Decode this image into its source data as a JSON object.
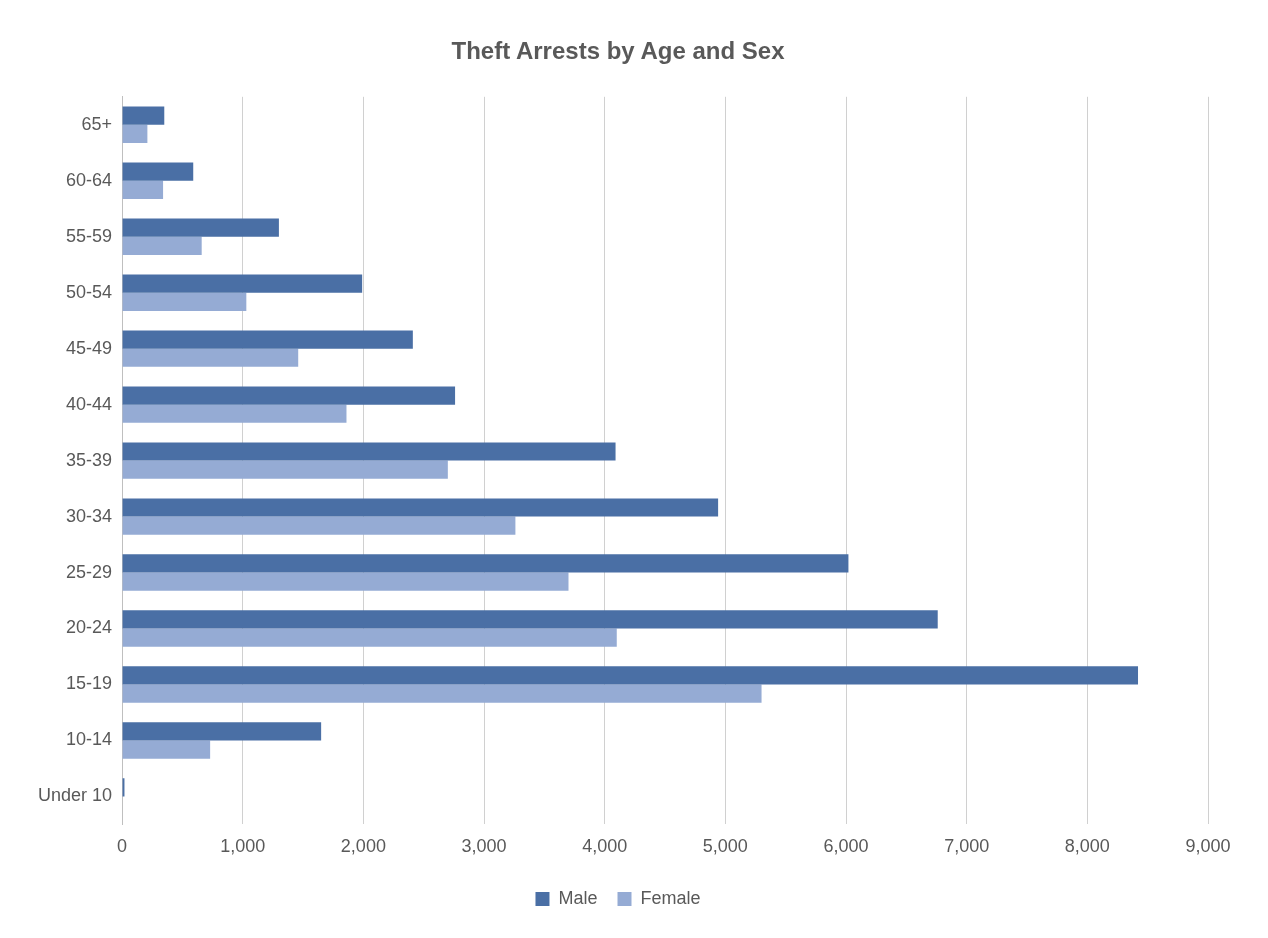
{
  "chart_data": {
    "type": "bar",
    "orientation": "horizontal",
    "title": "Theft Arrests by Age and Sex",
    "categories": [
      "65+",
      "60-64",
      "55-59",
      "50-54",
      "45-49",
      "40-44",
      "35-39",
      "30-34",
      "25-29",
      "20-24",
      "15-19",
      "10-14",
      "Under 10"
    ],
    "series": [
      {
        "name": "Male",
        "color": "#4a6fa5",
        "values": [
          350,
          590,
          1300,
          1990,
          2410,
          2760,
          4090,
          4940,
          6020,
          6760,
          8420,
          1650,
          20
        ]
      },
      {
        "name": "Female",
        "color": "#95abd4",
        "values": [
          210,
          340,
          660,
          1030,
          1460,
          1860,
          2700,
          3260,
          3700,
          4100,
          5300,
          730,
          null
        ]
      }
    ],
    "xlim": [
      0,
      9000
    ],
    "xticks": [
      {
        "value": 0,
        "label": "0"
      },
      {
        "value": 1000,
        "label": "1,000"
      },
      {
        "value": 2000,
        "label": "2,000"
      },
      {
        "value": 3000,
        "label": "3,000"
      },
      {
        "value": 4000,
        "label": "4,000"
      },
      {
        "value": 5000,
        "label": "5,000"
      },
      {
        "value": 6000,
        "label": "6,000"
      },
      {
        "value": 7000,
        "label": "7,000"
      },
      {
        "value": 8000,
        "label": "8,000"
      },
      {
        "value": 9000,
        "label": "9,000"
      }
    ],
    "grid": "x",
    "legend": "bottom"
  }
}
